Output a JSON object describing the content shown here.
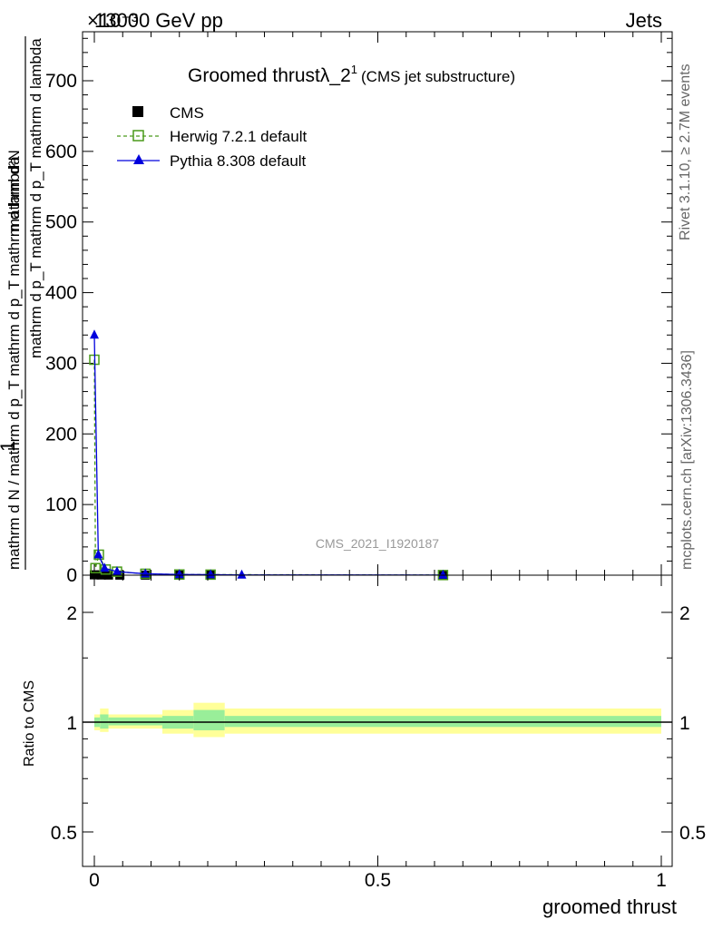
{
  "header": {
    "left": "13000 GeV pp",
    "right": "Jets",
    "exponent": "×10⁻³"
  },
  "side_labels": {
    "rivet": "Rivet 3.1.10, ≥ 2.7M events",
    "mcplots": "mcplots.cern.ch [arXiv:1306.3436]"
  },
  "colors": {
    "cms": "#000000",
    "herwig": "#4a9a1a",
    "pythia": "#0000dd",
    "band_outer": "#ffff99",
    "band_inner": "#99ee99"
  },
  "chart_data": [
    {
      "type": "line",
      "title_main": "Groomed thrust",
      "title_symbol": "λ_2",
      "title_sup": "1",
      "title_paren": "(CMS jet substructure)",
      "analysis_label": "CMS_2021_I1920187",
      "xlabel": "groomed thrust",
      "ylabel_numerator": "1",
      "ylabel_denominator": "mathrm d N / mathrm d p_T mathrm d p_T mathrm d lambda",
      "ylabel_top": "mathrm d²N",
      "xlim": [
        -0.02,
        1.0
      ],
      "ylim": [
        0,
        770
      ],
      "y_multiplier": "1e-3",
      "x_ticks": [
        "0",
        "0.5",
        "1"
      ],
      "y_ticks": [
        "0",
        "100",
        "200",
        "300",
        "400",
        "500",
        "600",
        "700"
      ],
      "legend_position": "top-left",
      "series": [
        {
          "name": "CMS",
          "marker": "filled-square",
          "x": [
            0.0,
            0.012,
            0.025,
            0.045,
            0.09,
            0.15,
            0.205,
            0.615
          ],
          "y": [
            0.5,
            0.3,
            0.2,
            0.1,
            0.05,
            0.05,
            0.05,
            0.02
          ]
        },
        {
          "name": "Herwig 7.2.1 default",
          "marker": "open-square",
          "line": "dashed",
          "x": [
            0.0,
            0.002,
            0.008,
            0.02,
            0.04,
            0.09,
            0.15,
            0.205,
            0.615
          ],
          "y": [
            305,
            10,
            29,
            8,
            5,
            2,
            1,
            0.8,
            0.2
          ]
        },
        {
          "name": "Pythia 8.308 default",
          "marker": "filled-triangle",
          "line": "solid",
          "x": [
            0.0,
            0.007,
            0.018,
            0.04,
            0.09,
            0.15,
            0.205,
            0.26,
            0.615
          ],
          "y": [
            340,
            29,
            10,
            5,
            2,
            1,
            0.8,
            0.3,
            0.2
          ]
        }
      ]
    },
    {
      "type": "area",
      "ylabel": "Ratio to CMS",
      "xlim": [
        -0.02,
        1.0
      ],
      "ylim": [
        0.4,
        2.3
      ],
      "y_ticks": [
        "0.5",
        "1",
        "2"
      ],
      "x_ticks": [
        "0",
        "0.5",
        "1"
      ],
      "ratio_line": 1.0,
      "bands": {
        "x_edges": [
          0.0,
          0.01,
          0.025,
          0.12,
          0.175,
          0.23,
          1.0
        ],
        "outer_lo": [
          0.95,
          0.94,
          0.96,
          0.93,
          0.91,
          0.93
        ],
        "outer_hi": [
          1.05,
          1.09,
          1.05,
          1.08,
          1.13,
          1.09
        ],
        "inner_lo": [
          0.97,
          0.96,
          0.98,
          0.96,
          0.95,
          0.97
        ],
        "inner_hi": [
          1.03,
          1.05,
          1.03,
          1.04,
          1.08,
          1.04
        ]
      }
    }
  ]
}
